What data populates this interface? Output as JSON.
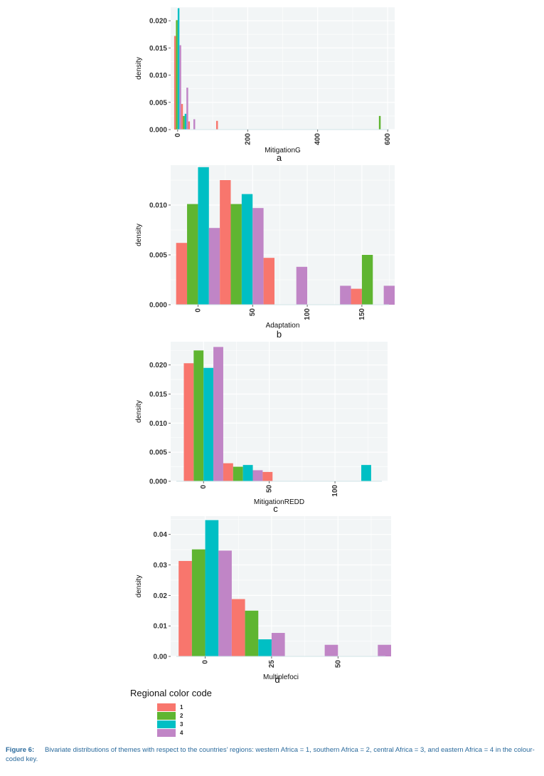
{
  "chart_data": [
    {
      "type": "bar",
      "panel_letter": "a",
      "xlabel": "MitigationG",
      "ylabel": "density",
      "xlim": [
        -20,
        620
      ],
      "ylim": [
        0,
        0.0225
      ],
      "xticks": [
        "0",
        "200",
        "400",
        "600"
      ],
      "xtick_values": [
        0,
        200,
        400,
        600
      ],
      "yticks": [
        "0.000",
        "0.005",
        "0.010",
        "0.015",
        "0.020"
      ],
      "ytick_values": [
        0,
        0.005,
        0.01,
        0.015,
        0.02
      ],
      "bin_width": 20,
      "bins": [
        {
          "center": 0,
          "values": [
            0.0172,
            0.0201,
            0.0223,
            0.0155
          ]
        },
        {
          "center": 20,
          "values": [
            0.0047,
            0.0025,
            0.0029,
            0.0077
          ]
        },
        {
          "center": 40,
          "values": [
            0.0015,
            0,
            0,
            0.0019
          ]
        },
        {
          "center": 120,
          "values": [
            0.0016,
            0,
            0,
            0
          ]
        },
        {
          "center": 580,
          "values": [
            0,
            0.0025,
            0,
            0
          ]
        }
      ]
    },
    {
      "type": "bar",
      "panel_letter": "b",
      "xlabel": "Adaptation",
      "ylabel": "density",
      "xlim": [
        -25,
        180
      ],
      "ylim": [
        0,
        0.014
      ],
      "xticks": [
        "0",
        "50",
        "100",
        "150"
      ],
      "xtick_values": [
        0,
        50,
        100,
        150
      ],
      "yticks": [
        "0.000",
        "0.005",
        "0.010"
      ],
      "ytick_values": [
        0,
        0.005,
        0.01
      ],
      "bin_width": 40,
      "bins": [
        {
          "center": 0,
          "values": [
            0.0062,
            0.0101,
            0.0138,
            0.0077
          ]
        },
        {
          "center": 40,
          "values": [
            0.0125,
            0.0101,
            0.0111,
            0.0097
          ]
        },
        {
          "center": 80,
          "values": [
            0.0047,
            0,
            0,
            0.0038
          ]
        },
        {
          "center": 120,
          "values": [
            0,
            0,
            0,
            0.0019
          ]
        },
        {
          "center": 160,
          "values": [
            0.0016,
            0.005,
            0,
            0.0019
          ]
        }
      ]
    },
    {
      "type": "bar",
      "panel_letter": "c",
      "xlabel": "MitigationREDD",
      "ylabel": "density",
      "xlim": [
        -25,
        140
      ],
      "ylim": [
        0,
        0.024
      ],
      "xticks": [
        "0",
        "50",
        "100"
      ],
      "xtick_values": [
        0,
        50,
        100
      ],
      "yticks": [
        "0.000",
        "0.005",
        "0.010",
        "0.015",
        "0.020"
      ],
      "ytick_values": [
        0,
        0.005,
        0.01,
        0.015,
        0.02
      ],
      "bin_width": 30,
      "bins": [
        {
          "center": 0,
          "values": [
            0.0203,
            0.0225,
            0.0195,
            0.0231
          ]
        },
        {
          "center": 30,
          "values": [
            0.0031,
            0.0025,
            0.0028,
            0.0019
          ]
        },
        {
          "center": 60,
          "values": [
            0.0016,
            0,
            0,
            0
          ]
        },
        {
          "center": 120,
          "values": [
            0,
            0,
            0.0028,
            0
          ]
        }
      ]
    },
    {
      "type": "bar",
      "panel_letter": "d",
      "xlabel": "Multiplefoci",
      "ylabel": "density",
      "xlim": [
        -13,
        70
      ],
      "ylim": [
        0,
        0.046
      ],
      "xticks": [
        "0",
        "25",
        "50"
      ],
      "xtick_values": [
        0,
        25,
        50
      ],
      "yticks": [
        "0.00",
        "0.01",
        "0.02",
        "0.03",
        "0.04"
      ],
      "ytick_values": [
        0,
        0.01,
        0.02,
        0.03,
        0.04
      ],
      "bin_width": 20,
      "bins": [
        {
          "center": 0,
          "values": [
            0.0313,
            0.0351,
            0.0447,
            0.0347
          ]
        },
        {
          "center": 20,
          "values": [
            0.0188,
            0.015,
            0.0056,
            0.0077
          ]
        },
        {
          "center": 40,
          "values": [
            0,
            0,
            0,
            0.0038
          ]
        },
        {
          "center": 60,
          "values": [
            0,
            0,
            0,
            0.0038
          ]
        }
      ]
    }
  ],
  "colors": {
    "group1": "#f8766d",
    "group2": "#5fb531",
    "group3": "#00bfc4",
    "group4": "#c085c6",
    "panel_bg": "#f2f5f6",
    "grid": "#ffffff"
  },
  "legend": {
    "title": "Regional color code",
    "items": [
      "1",
      "2",
      "3",
      "4"
    ]
  },
  "caption": {
    "label": "Figure 6:",
    "text": "Bivariate distributions of themes with respect to the countries’ regions: western Africa = 1, southern Africa = 2, central Africa = 3, and eastern Africa = 4 in the colour-coded key."
  }
}
